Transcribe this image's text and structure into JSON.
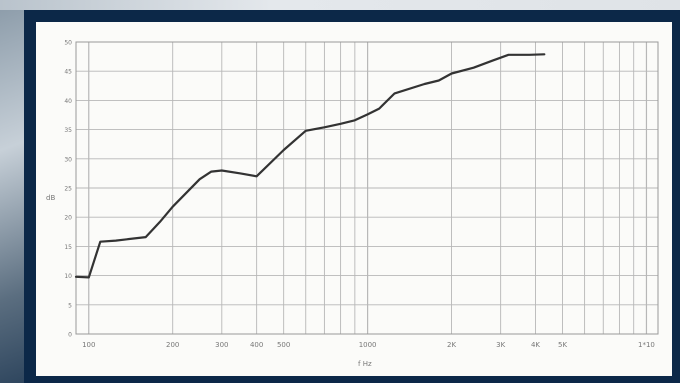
{
  "chart_data": {
    "type": "line",
    "title": "",
    "xlabel": "f Hz",
    "ylabel": "dB",
    "x_scale": "log",
    "x_ticks": [
      {
        "value": 100,
        "label": "100"
      },
      {
        "value": 200,
        "label": "200"
      },
      {
        "value": 300,
        "label": "300"
      },
      {
        "value": 400,
        "label": "400"
      },
      {
        "value": 500,
        "label": "500"
      },
      {
        "value": 1000,
        "label": "1000"
      },
      {
        "value": 2000,
        "label": "2K"
      },
      {
        "value": 3000,
        "label": "3K"
      },
      {
        "value": 4000,
        "label": "4K"
      },
      {
        "value": 5000,
        "label": "5K"
      },
      {
        "value": 10000,
        "label": "1*10"
      }
    ],
    "y_ticks": [
      0,
      5,
      10,
      15,
      20,
      25,
      30,
      35,
      40,
      45,
      50
    ],
    "xlim": [
      90,
      11000
    ],
    "ylim": [
      0,
      50
    ],
    "grid": true,
    "series": [
      {
        "x": [
          90,
          100,
          110,
          125,
          160,
          180,
          200,
          250,
          275,
          300,
          350,
          400,
          500,
          600,
          700,
          800,
          900,
          1000,
          1100,
          1250,
          1600,
          1800,
          2000,
          2400,
          2800,
          3200,
          3800,
          4300
        ],
        "y": [
          9.8,
          9.7,
          15.8,
          16.0,
          16.6,
          19.2,
          21.8,
          26.5,
          27.8,
          28.0,
          27.5,
          27.0,
          31.5,
          34.8,
          35.4,
          36.0,
          36.6,
          37.6,
          38.6,
          41.2,
          42.8,
          43.4,
          44.6,
          45.6,
          46.8,
          47.8,
          47.8,
          47.9
        ]
      }
    ]
  },
  "colors": {
    "line": "#333333",
    "grid": "#b7b7b7",
    "paper": "#fbfbf9",
    "frame": "#0c2848"
  }
}
